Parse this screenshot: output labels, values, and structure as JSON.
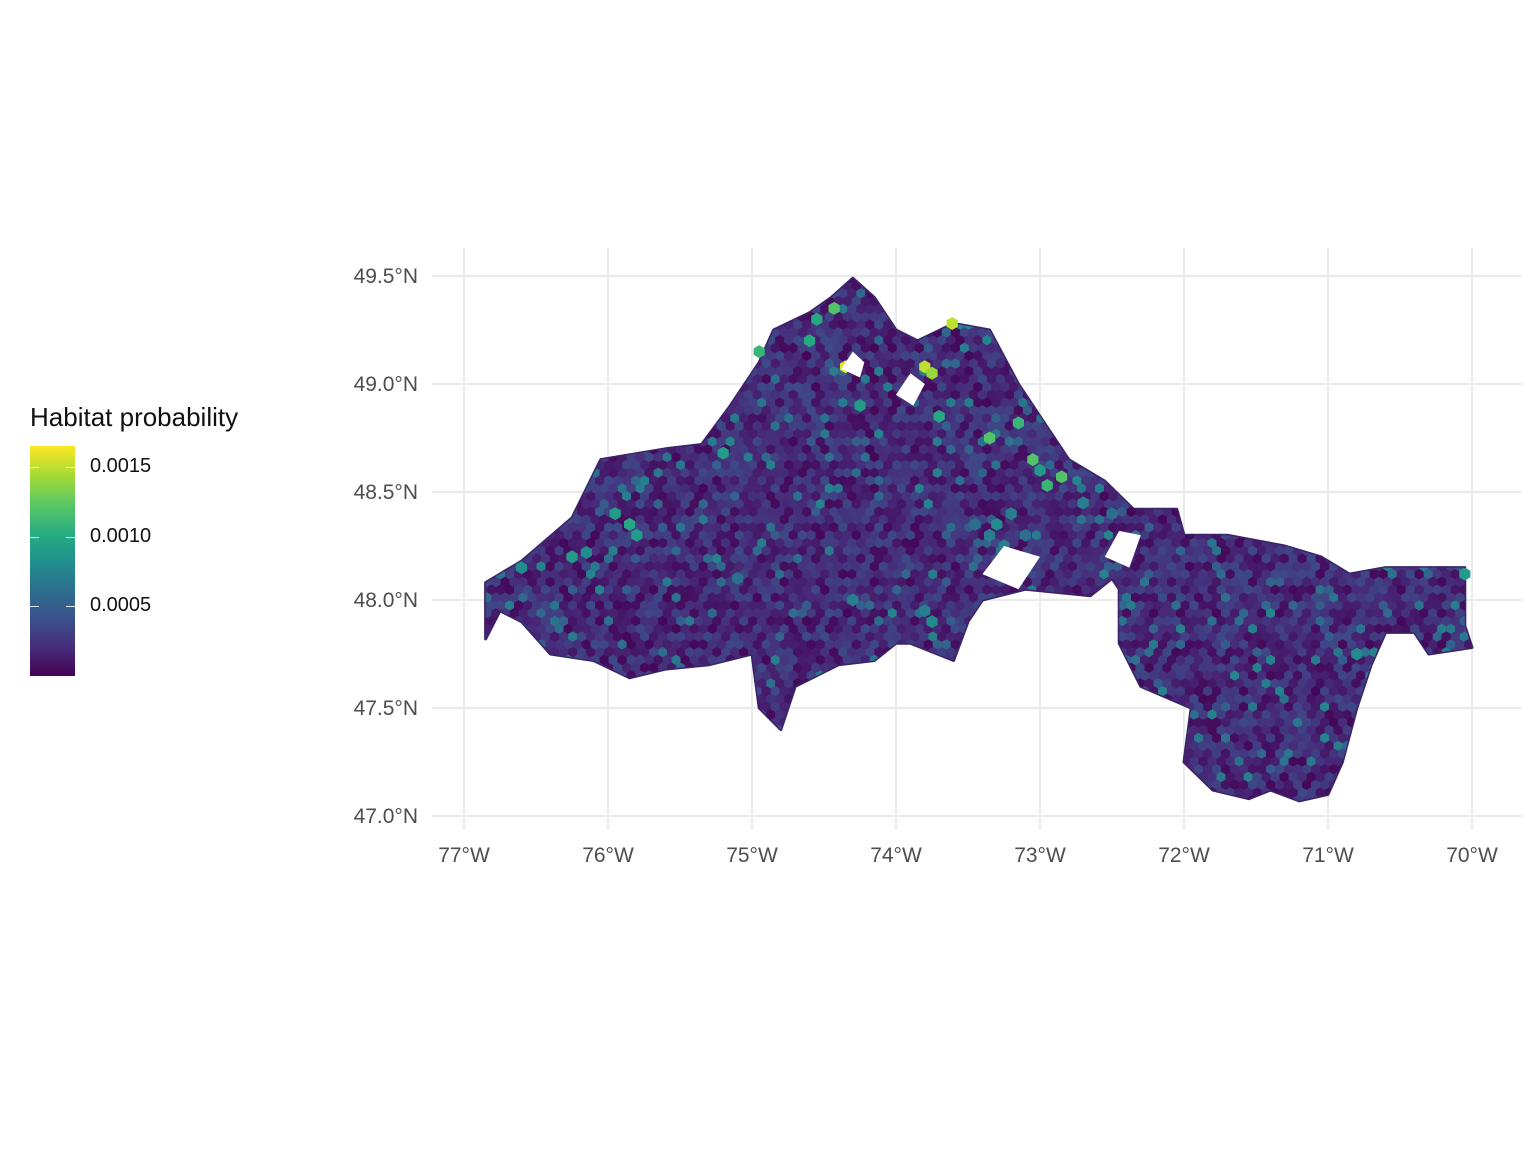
{
  "legend": {
    "title": "Habitat probability",
    "labels": [
      "0.0015",
      "0.0010",
      "0.0005"
    ],
    "label_values": [
      0.0015,
      0.001,
      0.0005
    ],
    "range": [
      0.0,
      0.00165
    ]
  },
  "chart_data": {
    "type": "heatmap",
    "map_kind": "hexbin choropleth",
    "xlabel": "",
    "ylabel": "",
    "x_ticks": [
      "77°W",
      "76°W",
      "75°W",
      "74°W",
      "73°W",
      "72°W",
      "71°W",
      "70°W"
    ],
    "x_tick_values": [
      -77,
      -76,
      -75,
      -74,
      -73,
      -72,
      -71,
      -70
    ],
    "y_ticks": [
      "47.0°N",
      "47.5°N",
      "48.0°N",
      "48.5°N",
      "49.0°N",
      "49.5°N"
    ],
    "y_tick_values": [
      47.0,
      47.5,
      48.0,
      48.5,
      49.0,
      49.5
    ],
    "xlim": [
      -77.2,
      -69.65
    ],
    "ylim": [
      46.95,
      49.62
    ],
    "grid": true,
    "legend_position": "left",
    "colormap": "viridis",
    "colors": [
      "#440154",
      "#472c7a",
      "#3b518b",
      "#2c718e",
      "#21908d",
      "#27ad81",
      "#5cc863",
      "#aadc32",
      "#fde725"
    ],
    "region_outline_lonlat": [
      [
        -76.85,
        47.82
      ],
      [
        -76.85,
        48.08
      ],
      [
        -76.6,
        48.18
      ],
      [
        -76.25,
        48.38
      ],
      [
        -76.05,
        48.65
      ],
      [
        -75.6,
        48.7
      ],
      [
        -75.35,
        48.72
      ],
      [
        -75.15,
        48.9
      ],
      [
        -74.95,
        49.1
      ],
      [
        -74.85,
        49.25
      ],
      [
        -74.6,
        49.33
      ],
      [
        -74.45,
        49.4
      ],
      [
        -74.3,
        49.49
      ],
      [
        -74.15,
        49.4
      ],
      [
        -74.0,
        49.25
      ],
      [
        -73.85,
        49.2
      ],
      [
        -73.6,
        49.28
      ],
      [
        -73.35,
        49.25
      ],
      [
        -73.15,
        49.0
      ],
      [
        -72.95,
        48.8
      ],
      [
        -72.8,
        48.65
      ],
      [
        -72.55,
        48.55
      ],
      [
        -72.35,
        48.42
      ],
      [
        -72.05,
        48.42
      ],
      [
        -72.0,
        48.3
      ],
      [
        -71.7,
        48.3
      ],
      [
        -71.3,
        48.25
      ],
      [
        -71.05,
        48.2
      ],
      [
        -70.85,
        48.12
      ],
      [
        -70.6,
        48.15
      ],
      [
        -70.05,
        48.15
      ],
      [
        -70.05,
        47.88
      ],
      [
        -70.0,
        47.78
      ],
      [
        -70.3,
        47.75
      ],
      [
        -70.4,
        47.85
      ],
      [
        -70.6,
        47.85
      ],
      [
        -70.7,
        47.7
      ],
      [
        -70.8,
        47.5
      ],
      [
        -70.9,
        47.25
      ],
      [
        -71.0,
        47.1
      ],
      [
        -71.2,
        47.07
      ],
      [
        -71.4,
        47.12
      ],
      [
        -71.55,
        47.08
      ],
      [
        -71.8,
        47.12
      ],
      [
        -72.0,
        47.25
      ],
      [
        -71.95,
        47.5
      ],
      [
        -72.3,
        47.6
      ],
      [
        -72.45,
        47.8
      ],
      [
        -72.45,
        48.05
      ],
      [
        -72.5,
        48.1
      ],
      [
        -72.65,
        48.02
      ],
      [
        -73.1,
        48.05
      ],
      [
        -73.4,
        48.0
      ],
      [
        -73.5,
        47.9
      ],
      [
        -73.6,
        47.72
      ],
      [
        -73.9,
        47.8
      ],
      [
        -74.0,
        47.8
      ],
      [
        -74.15,
        47.72
      ],
      [
        -74.4,
        47.7
      ],
      [
        -74.7,
        47.6
      ],
      [
        -74.8,
        47.4
      ],
      [
        -74.95,
        47.5
      ],
      [
        -75.0,
        47.75
      ],
      [
        -75.3,
        47.7
      ],
      [
        -75.6,
        47.68
      ],
      [
        -75.85,
        47.64
      ],
      [
        -76.1,
        47.72
      ],
      [
        -76.4,
        47.75
      ],
      [
        -76.6,
        47.9
      ],
      [
        -76.75,
        47.95
      ]
    ],
    "holes_lonlat": [
      [
        [
          -74.38,
          49.07
        ],
        [
          -74.3,
          49.15
        ],
        [
          -74.22,
          49.1
        ],
        [
          -74.25,
          49.03
        ]
      ],
      [
        [
          -74.0,
          48.95
        ],
        [
          -73.9,
          49.05
        ],
        [
          -73.8,
          49.0
        ],
        [
          -73.88,
          48.9
        ]
      ],
      [
        [
          -73.4,
          48.12
        ],
        [
          -73.25,
          48.25
        ],
        [
          -73.0,
          48.2
        ],
        [
          -73.15,
          48.05
        ]
      ],
      [
        [
          -72.55,
          48.2
        ],
        [
          -72.45,
          48.32
        ],
        [
          -72.3,
          48.3
        ],
        [
          -72.38,
          48.15
        ]
      ]
    ],
    "cells": [
      {
        "lon": -73.61,
        "lat": 49.28,
        "value": 0.0015
      },
      {
        "lon": -74.35,
        "lat": 49.08,
        "value": 0.0016
      },
      {
        "lon": -73.8,
        "lat": 49.08,
        "value": 0.0015
      },
      {
        "lon": -73.75,
        "lat": 49.05,
        "value": 0.0014
      },
      {
        "lon": -73.9,
        "lat": 49.0,
        "value": 0.0013
      },
      {
        "lon": -74.43,
        "lat": 49.35,
        "value": 0.0012
      },
      {
        "lon": -72.85,
        "lat": 48.57,
        "value": 0.0012
      },
      {
        "lon": -73.35,
        "lat": 48.75,
        "value": 0.0012
      },
      {
        "lon": -73.05,
        "lat": 48.65,
        "value": 0.0012
      },
      {
        "lon": -72.95,
        "lat": 48.53,
        "value": 0.0011
      },
      {
        "lon": -74.95,
        "lat": 49.15,
        "value": 0.0011
      },
      {
        "lon": -74.55,
        "lat": 49.3,
        "value": 0.001
      },
      {
        "lon": -73.15,
        "lat": 48.82,
        "value": 0.0011
      },
      {
        "lon": -73.7,
        "lat": 48.85,
        "value": 0.001
      },
      {
        "lon": -74.6,
        "lat": 49.2,
        "value": 0.001
      },
      {
        "lon": -74.25,
        "lat": 48.9,
        "value": 0.0009
      },
      {
        "lon": -73.0,
        "lat": 48.6,
        "value": 0.0009
      },
      {
        "lon": -70.05,
        "lat": 48.12,
        "value": 0.0009
      },
      {
        "lon": -75.2,
        "lat": 48.68,
        "value": 0.0009
      },
      {
        "lon": -75.85,
        "lat": 48.35,
        "value": 0.001
      },
      {
        "lon": -75.8,
        "lat": 48.3,
        "value": 0.0009
      },
      {
        "lon": -75.95,
        "lat": 48.4,
        "value": 0.0009
      },
      {
        "lon": -76.25,
        "lat": 48.2,
        "value": 0.0009
      },
      {
        "lon": -76.15,
        "lat": 48.22,
        "value": 0.0008
      },
      {
        "lon": -76.6,
        "lat": 48.15,
        "value": 0.0008
      },
      {
        "lon": -73.3,
        "lat": 48.35,
        "value": 0.0008
      },
      {
        "lon": -73.35,
        "lat": 48.3,
        "value": 0.0007
      },
      {
        "lon": -73.2,
        "lat": 48.4,
        "value": 0.0007
      },
      {
        "lon": -73.25,
        "lat": 48.25,
        "value": 0.0007
      },
      {
        "lon": -73.45,
        "lat": 48.35,
        "value": 0.0006
      },
      {
        "lon": -73.1,
        "lat": 48.3,
        "value": 0.0006
      },
      {
        "lon": -73.75,
        "lat": 47.9,
        "value": 0.0008
      },
      {
        "lon": -73.8,
        "lat": 47.95,
        "value": 0.0007
      },
      {
        "lon": -70.8,
        "lat": 47.75,
        "value": 0.0008
      },
      {
        "lon": -74.3,
        "lat": 48.0,
        "value": 0.0007
      },
      {
        "lon": -75.1,
        "lat": 48.1,
        "value": 0.0006
      },
      {
        "lon": -72.7,
        "lat": 48.45,
        "value": 0.0007
      },
      {
        "lon": -72.5,
        "lat": 48.4,
        "value": 0.0006
      }
    ]
  }
}
